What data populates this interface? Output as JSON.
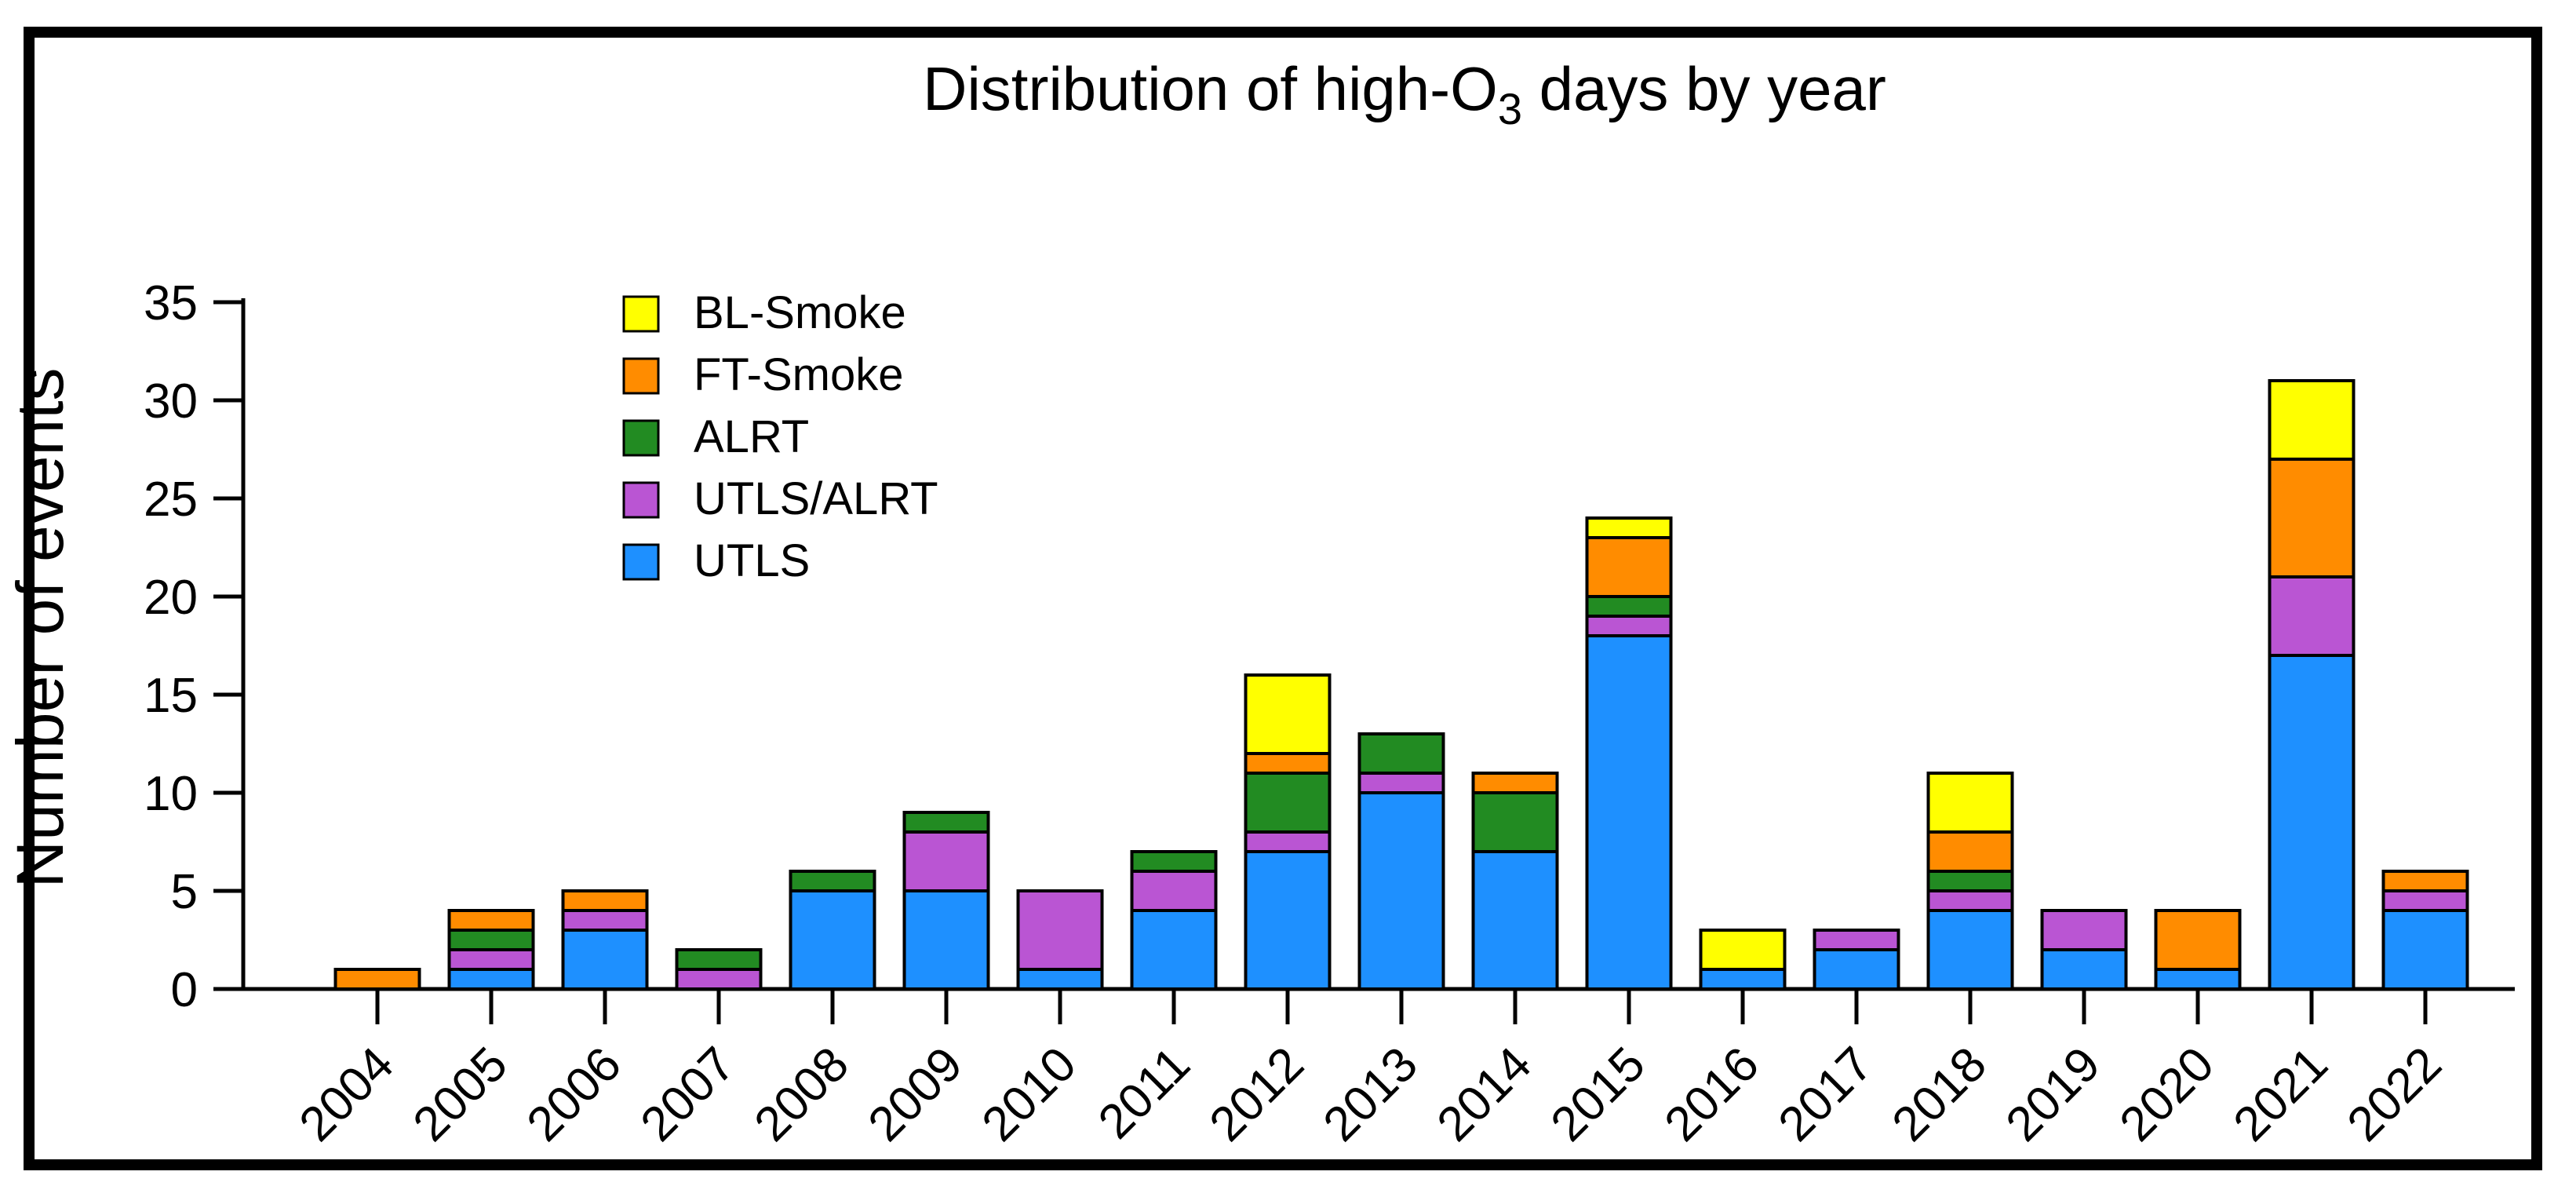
{
  "title": {
    "pre": "Distribution of high-O",
    "sub": "3",
    "post": " days by year"
  },
  "colors": {
    "background": "#FFFFFF",
    "frame": "#000000",
    "axis": "#000000",
    "bar_outline": "#000000"
  },
  "chart_data": {
    "type": "bar",
    "stacked": true,
    "title": "Distribution of high-O3 days by year",
    "xlabel": "",
    "ylabel": "Number of events",
    "ylim": [
      0,
      35
    ],
    "ytick_step": 5,
    "yticks": [
      0,
      5,
      10,
      15,
      20,
      25,
      30,
      35
    ],
    "grid": false,
    "legend_position": "upper-left-inside",
    "legend_order_top_to_bottom": [
      "BL-Smoke",
      "FT-Smoke",
      "ALRT",
      "UTLS/ALRT",
      "UTLS"
    ],
    "categories": [
      "2004",
      "2005",
      "2006",
      "2007",
      "2008",
      "2009",
      "2010",
      "2011",
      "2012",
      "2013",
      "2014",
      "2015",
      "2016",
      "2017",
      "2018",
      "2019",
      "2020",
      "2021",
      "2022"
    ],
    "series": [
      {
        "name": "UTLS",
        "color": "#1E90FF",
        "values": [
          0,
          1,
          3,
          0,
          5,
          5,
          1,
          4,
          7,
          10,
          7,
          18,
          1,
          2,
          4,
          2,
          1,
          17,
          4
        ]
      },
      {
        "name": "UTLS/ALRT",
        "color": "#BA55D3",
        "values": [
          0,
          1,
          1,
          1,
          0,
          3,
          4,
          2,
          1,
          1,
          0,
          1,
          0,
          1,
          1,
          2,
          0,
          4,
          1
        ]
      },
      {
        "name": "ALRT",
        "color": "#228B22",
        "values": [
          0,
          1,
          0,
          1,
          1,
          1,
          0,
          1,
          3,
          2,
          3,
          1,
          0,
          0,
          1,
          0,
          0,
          0,
          0
        ]
      },
      {
        "name": "FT-Smoke",
        "color": "#FF8C00",
        "values": [
          1,
          1,
          1,
          0,
          0,
          0,
          0,
          0,
          1,
          0,
          1,
          3,
          0,
          0,
          2,
          0,
          3,
          6,
          1
        ]
      },
      {
        "name": "BL-Smoke",
        "color": "#FFFF00",
        "values": [
          0,
          0,
          0,
          0,
          0,
          0,
          0,
          0,
          4,
          0,
          0,
          1,
          2,
          0,
          3,
          0,
          0,
          4,
          0
        ]
      }
    ],
    "totals": [
      1,
      4,
      5,
      2,
      6,
      9,
      5,
      7,
      16,
      13,
      11,
      24,
      3,
      3,
      11,
      4,
      4,
      31,
      6
    ]
  }
}
